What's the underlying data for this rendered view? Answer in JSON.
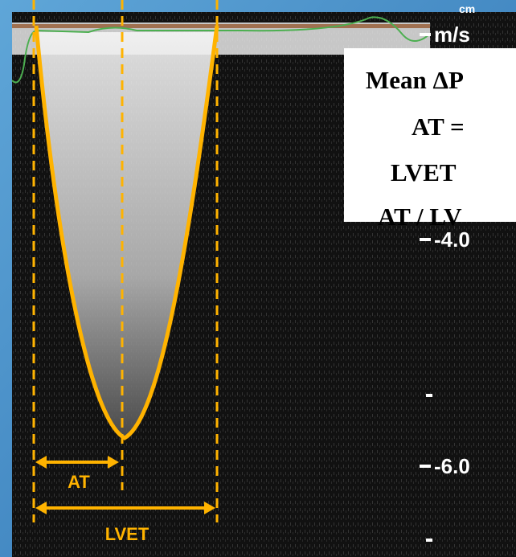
{
  "scale": {
    "unit": "m/s",
    "unit_overlay": "cm",
    "labels": [
      "-4.0",
      "-6.0"
    ]
  },
  "info_box": {
    "lines": [
      "Mean ΔP",
      "AT =",
      "LVET",
      "AT / LV"
    ]
  },
  "annotations": {
    "at": "AT",
    "lvet": "LVET"
  }
}
